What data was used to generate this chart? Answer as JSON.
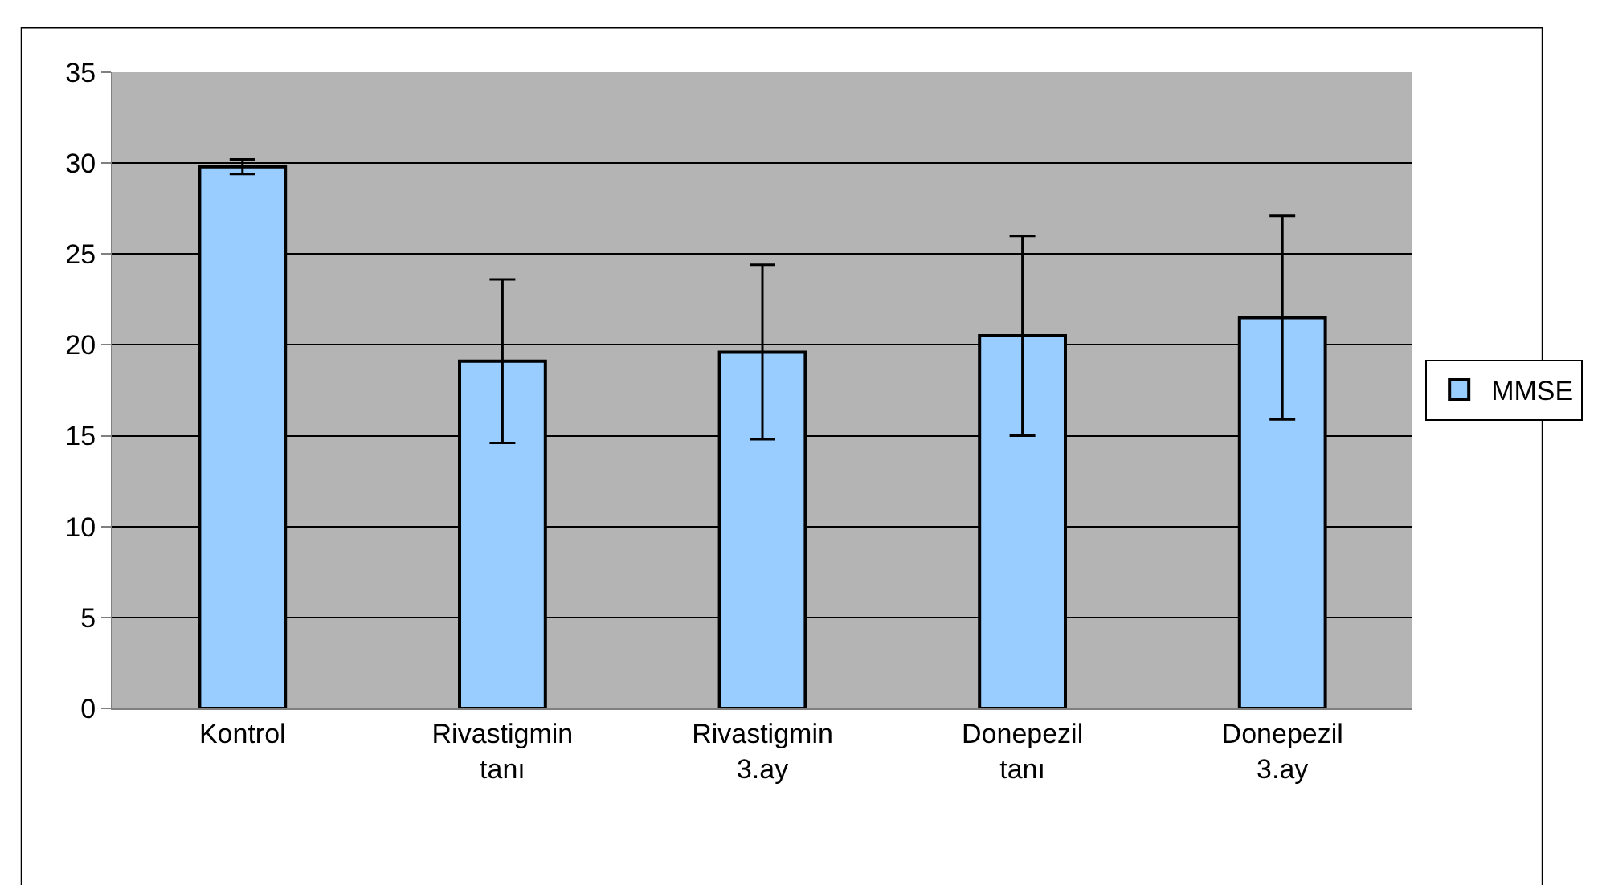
{
  "chart_data": {
    "type": "bar",
    "categories": [
      "Kontrol",
      "Rivastigmin tanı",
      "Rivastigmin 3.ay",
      "Donepezil tanı",
      "Donepezil 3.ay"
    ],
    "series": [
      {
        "name": "MMSE",
        "color": "#99ccff",
        "values": [
          29.8,
          19.1,
          19.6,
          20.5,
          21.5
        ],
        "errors": [
          0.4,
          4.5,
          4.8,
          5.5,
          5.6
        ]
      }
    ],
    "ylim": [
      0,
      35
    ],
    "yticks": [
      0,
      5,
      10,
      15,
      20,
      25,
      30,
      35
    ],
    "grid": "y",
    "legend": "right"
  }
}
